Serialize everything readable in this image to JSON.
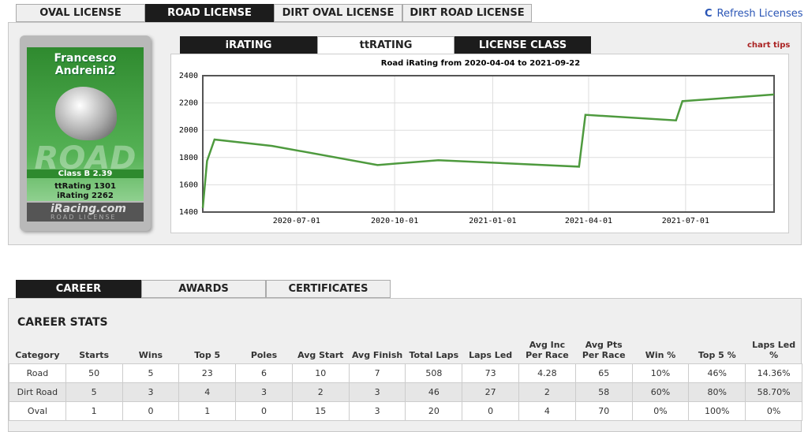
{
  "license_tabs": [
    "OVAL LICENSE",
    "ROAD LICENSE",
    "DIRT OVAL LICENSE",
    "DIRT ROAD LICENSE"
  ],
  "refresh": "Refresh Licenses",
  "license_card": {
    "name": "Francesco Andreini2",
    "watermark": "ROAD",
    "class": "Class B 2.39",
    "ttrating": "ttRating 1301",
    "irating": "iRating 2262",
    "brand": "iRacing.com",
    "subtitle": "ROAD LICENSE"
  },
  "chart_tabs": [
    "iRATING",
    "ttRATING",
    "LICENSE CLASS"
  ],
  "chart_tips": "chart tips",
  "chart_data": {
    "type": "line",
    "title": "Road iRating from 2020-04-04 to 2021-09-22",
    "x": [
      "2020-04-04",
      "2020-04-08",
      "2020-04-15",
      "2020-06-08",
      "2020-09-15",
      "2020-11-11",
      "2021-03-23",
      "2021-03-29",
      "2021-06-22",
      "2021-06-28",
      "2021-09-22"
    ],
    "series": [
      {
        "color": "#4e9a3e",
        "values": [
          1430,
          1775,
          1932,
          1885,
          1745,
          1780,
          1733,
          2113,
          2072,
          2213,
          2262
        ]
      }
    ],
    "xlim": [
      "2020-04-04",
      "2021-09-22"
    ],
    "xticks": [
      "2020-07-01",
      "2020-10-01",
      "2021-01-01",
      "2021-04-01",
      "2021-07-01"
    ],
    "ylim": [
      1400,
      2400
    ],
    "yticks": [
      1400,
      1600,
      1800,
      2000,
      2200,
      2400
    ],
    "grid": true
  },
  "career": {
    "tabs": [
      "CAREER",
      "AWARDS",
      "CERTIFICATES"
    ],
    "title": "CAREER STATS",
    "columns": [
      "Category",
      "Starts",
      "Wins",
      "Top 5",
      "Poles",
      "Avg Start",
      "Avg Finish",
      "Total Laps",
      "Laps Led",
      "Avg Inc Per Race",
      "Avg Pts Per Race",
      "Win %",
      "Top 5 %",
      "Laps Led %"
    ],
    "rows": [
      [
        "Road",
        "50",
        "5",
        "23",
        "6",
        "10",
        "7",
        "508",
        "73",
        "4.28",
        "65",
        "10%",
        "46%",
        "14.36%"
      ],
      [
        "Dirt Road",
        "5",
        "3",
        "4",
        "3",
        "2",
        "3",
        "46",
        "27",
        "2",
        "58",
        "60%",
        "80%",
        "58.70%"
      ],
      [
        "Oval",
        "1",
        "0",
        "1",
        "0",
        "15",
        "3",
        "20",
        "0",
        "4",
        "70",
        "0%",
        "100%",
        "0%"
      ]
    ]
  }
}
